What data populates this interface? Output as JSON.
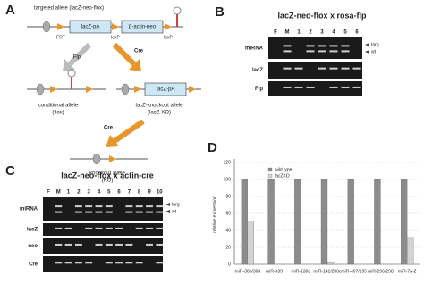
{
  "panel_a": {
    "letter": "A",
    "title": "targeted allele (lacZ-neo-flox)",
    "cassette_1": "lacZ-pA",
    "cassette_2": "β-actin-neo",
    "site_frt": "FRT",
    "site_loxp_1": "loxP",
    "site_loxp_2": "loxP",
    "arrow_flp": "Flp",
    "arrow_cre": "Cre",
    "conditional_label": [
      "conditional allele",
      "(flox)"
    ],
    "ko_cassette": "lacZ-pA",
    "lacz_ko_label": [
      "lacZ-knockout allele",
      "(lacZ-KO)"
    ],
    "arrow_cre_2": "Cre",
    "ko_label": [
      "knockout allele",
      "(KO)"
    ]
  },
  "panel_b": {
    "letter": "B",
    "title": "lacZ-neo-flox x rosa-flp",
    "lanes": [
      "F",
      "M",
      "1",
      "2",
      "3",
      "4",
      "5",
      "6"
    ],
    "rows": [
      "miRNA",
      "lacZ",
      "Flp"
    ],
    "bands": [
      "targ",
      "wt"
    ]
  },
  "panel_c": {
    "letter": "C",
    "title": "lacZ-neo-flox x actin-cre",
    "lanes": [
      "F",
      "M",
      "1",
      "2",
      "3",
      "4",
      "5",
      "6",
      "7",
      "8",
      "9",
      "10"
    ],
    "rows": [
      "miRNA",
      "lacZ",
      "neo",
      "Cre"
    ],
    "bands": [
      "targ",
      "wt"
    ]
  },
  "chart_data": {
    "type": "bar",
    "panel_label": "D",
    "y_label": "relative expression",
    "categories": [
      "miR-30b/30d",
      "miR-339",
      "miR-130a",
      "miR-141/200c",
      "miR-497/195",
      "miR-296/298",
      "miR-7a-2"
    ],
    "series": [
      {
        "name": "wild type",
        "color": "#8c8c8c",
        "values": [
          100,
          100,
          100,
          100,
          100,
          100,
          100
        ]
      },
      {
        "name": "lacZKO",
        "color": "#d4d4d4",
        "values": [
          51,
          0,
          0,
          2,
          0,
          0,
          32
        ]
      }
    ],
    "ylim": [
      0,
      120
    ],
    "yticks": [
      0,
      20,
      40,
      60,
      80,
      100,
      120
    ],
    "grid": true
  }
}
